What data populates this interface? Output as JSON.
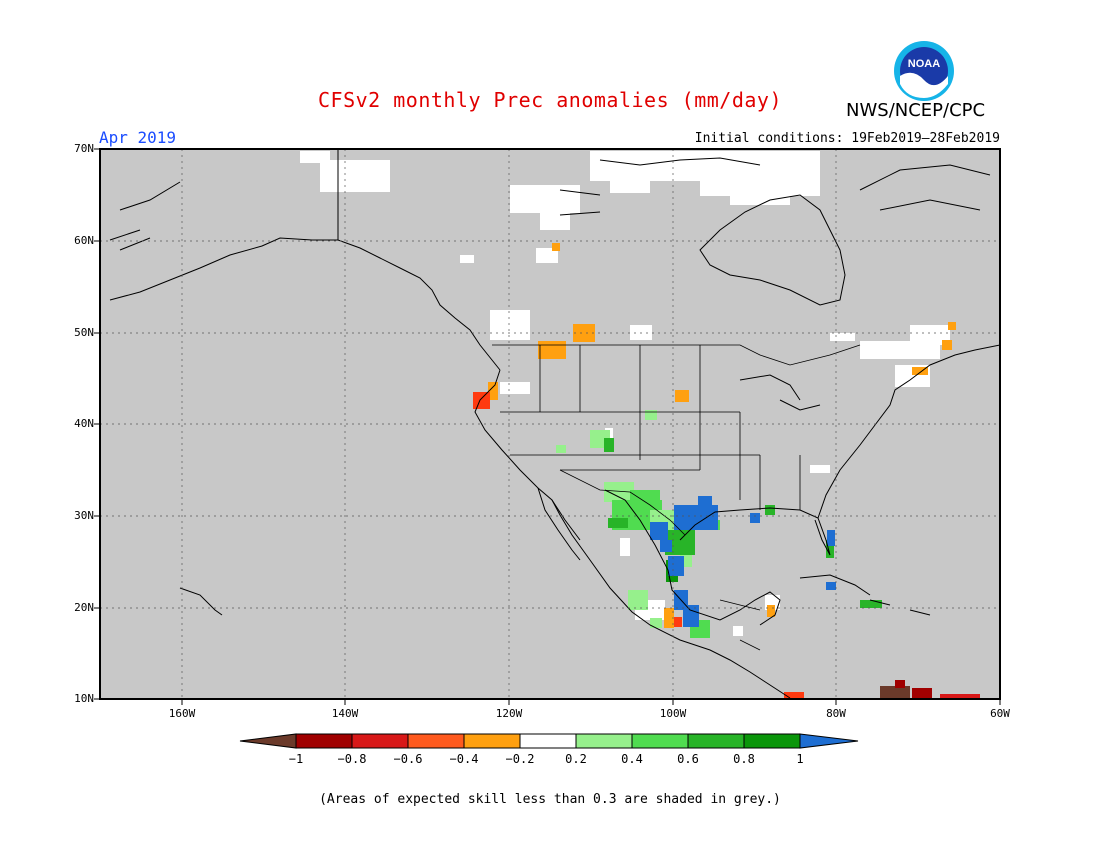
{
  "header": {
    "title": "CFSv2 monthly Prec anomalies (mm/day)",
    "agency": "NWS/NCEP/CPC",
    "logo_text": "NOAA",
    "month": "Apr 2019",
    "initial_conditions": "Initial conditions: 19Feb2019–28Feb2019"
  },
  "map": {
    "region": "North America",
    "background_color": "#c8c8c8",
    "lat_labels": [
      "70N",
      "60N",
      "50N",
      "40N",
      "30N",
      "20N",
      "10N"
    ],
    "lon_labels": [
      "160W",
      "140W",
      "120W",
      "100W",
      "80W",
      "60W"
    ],
    "lat_range": [
      10,
      70
    ],
    "lon_range": [
      -170,
      -60
    ]
  },
  "colorbar": {
    "labels": [
      "−1",
      "−0.8",
      "−0.6",
      "−0.4",
      "−0.2",
      "0.2",
      "0.4",
      "0.6",
      "0.8",
      "1"
    ],
    "colors": {
      "lt_neg1": "#6b3a2a",
      "neg1_neg08": "#a00000",
      "neg08_neg06": "#d81818",
      "neg06_neg04": "#ff5a1e",
      "neg04_neg02": "#ffa010",
      "neg02_02": "#ffffff",
      "p02_p04": "#96f08c",
      "p04_p06": "#50dc50",
      "p06_p08": "#28b428",
      "p08_p1": "#0a960a",
      "gt_p1": "#1e6ed2"
    }
  },
  "footnote": "(Areas of expected skill less than 0.3 are shaded in grey.)"
}
